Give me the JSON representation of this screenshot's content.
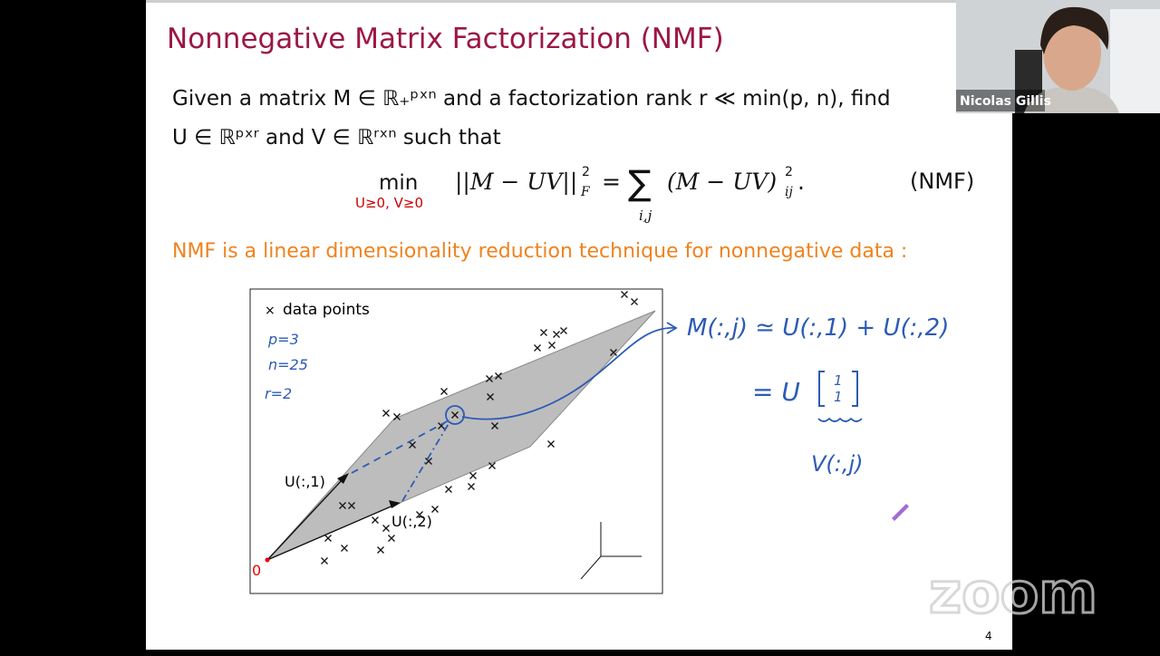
{
  "slide": {
    "title": "Nonnegative Matrix Factorization (NMF)",
    "text_lines": [
      "Given a matrix M ∈ ℝ₊ᵖˣⁿ and a factorization rank r ≪ min(p, n), find",
      "U ∈ ℝᵖˣʳ and V ∈ ℝʳˣⁿ such that"
    ],
    "equation": {
      "operator": "min",
      "constraint": "U≥0, V≥0",
      "left": "||M − UV||",
      "left_power": "2",
      "left_subscript": "F",
      "equals": "=",
      "sum": "∑",
      "sum_index": "i,j",
      "right": "(M − UV)",
      "right_power": "2",
      "right_subscript": "ij",
      "end": ".",
      "tag": "(NMF)"
    },
    "highlight": "NMF is a linear dimensionality reduction technique for nonnegative data :",
    "page_number": "4"
  },
  "figure": {
    "legend": "data points",
    "vector_labels": [
      "U(:,1)",
      "U(:,2)"
    ],
    "origin_label": "0"
  },
  "annotations": {
    "figure_notes": [
      "p=3",
      "n=25",
      "r=2"
    ],
    "formula": "M(:,j) ≃ U(:,1) + U(:,2)",
    "second_line": "= U",
    "vector_entries": [
      "1",
      "1"
    ],
    "brace_label": "V(:,j)"
  },
  "participant": {
    "name": "Nicolas Gillis"
  },
  "watermark": "zoom"
}
